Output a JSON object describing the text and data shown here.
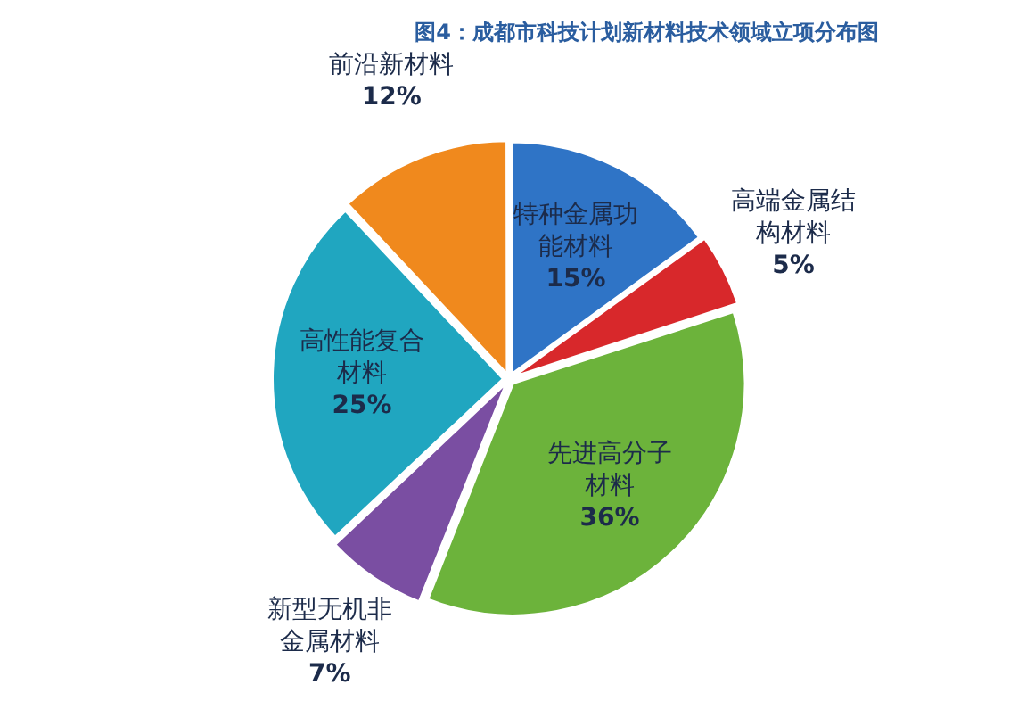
{
  "chart_data": {
    "type": "pie",
    "title": "图4：成都市科技计划新材料技术领域立项分布图",
    "categories": [
      "特种金属功能材料",
      "高端金属结构材料",
      "先进高分子材料",
      "新型无机非金属材料",
      "高性能复合材料",
      "前沿新材料"
    ],
    "values": [
      15,
      5,
      36,
      7,
      25,
      12
    ],
    "colors": [
      "#2f74c6",
      "#d8282b",
      "#6cb33b",
      "#7a4ea2",
      "#20a6c0",
      "#f0891d"
    ],
    "value_labels": [
      "15%",
      "5%",
      "36%",
      "7%",
      "25%",
      "12%"
    ],
    "legend": false
  }
}
